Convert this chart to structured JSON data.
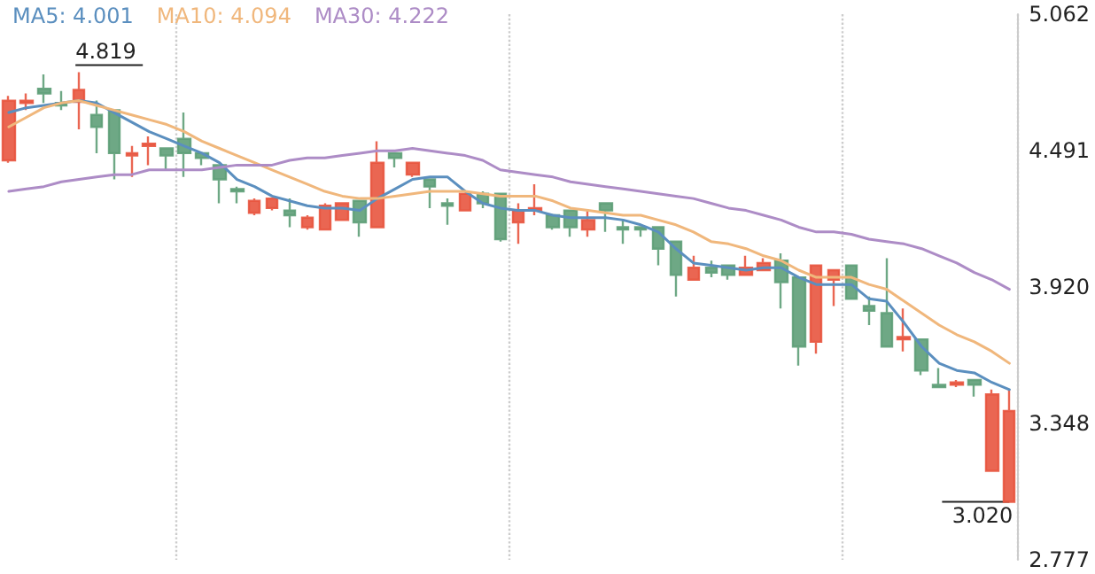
{
  "chart_data": {
    "type": "candlestick",
    "categories": [
      null,
      null,
      null,
      null,
      null,
      null,
      null,
      null,
      null,
      null,
      null,
      null,
      null,
      null,
      null,
      null,
      null,
      null,
      null,
      null,
      null,
      null,
      null,
      null,
      null,
      null,
      null,
      null,
      null,
      null,
      null,
      null,
      null,
      null,
      null,
      null,
      null,
      null,
      null,
      null,
      null,
      null,
      null,
      null,
      null,
      null,
      null,
      null,
      null,
      null,
      null,
      null,
      null,
      null,
      null,
      null,
      null,
      null
    ],
    "ohlc": [
      [
        4.45,
        4.72,
        4.44,
        4.7
      ],
      [
        4.69,
        4.73,
        4.66,
        4.7
      ],
      [
        4.75,
        4.81,
        4.69,
        4.73
      ],
      [
        4.69,
        4.74,
        4.66,
        4.68
      ],
      [
        4.695,
        4.819,
        4.58,
        4.745
      ],
      [
        4.64,
        4.7,
        4.48,
        4.59
      ],
      [
        4.66,
        4.66,
        4.37,
        4.48
      ],
      [
        4.47,
        4.51,
        4.38,
        4.48
      ],
      [
        4.51,
        4.55,
        4.43,
        4.52
      ],
      [
        4.5,
        4.5,
        4.41,
        4.47
      ],
      [
        4.54,
        4.65,
        4.38,
        4.48
      ],
      [
        4.48,
        4.48,
        4.43,
        4.46
      ],
      [
        4.43,
        4.43,
        4.27,
        4.37
      ],
      [
        4.33,
        4.34,
        4.27,
        4.32
      ],
      [
        4.23,
        4.29,
        4.22,
        4.28
      ],
      [
        4.25,
        4.29,
        4.24,
        4.29
      ],
      [
        4.24,
        4.29,
        4.17,
        4.22
      ],
      [
        4.17,
        4.22,
        4.16,
        4.21
      ],
      [
        4.16,
        4.27,
        4.16,
        4.26
      ],
      [
        4.2,
        4.27,
        4.2,
        4.27
      ],
      [
        4.28,
        4.28,
        4.13,
        4.19
      ],
      [
        4.17,
        4.53,
        4.17,
        4.44
      ],
      [
        4.48,
        4.48,
        4.42,
        4.46
      ],
      [
        4.39,
        4.44,
        4.38,
        4.44
      ],
      [
        4.37,
        4.37,
        4.25,
        4.34
      ],
      [
        4.27,
        4.29,
        4.18,
        4.26
      ],
      [
        4.24,
        4.31,
        4.24,
        4.31
      ],
      [
        4.31,
        4.32,
        4.25,
        4.27
      ],
      [
        4.31,
        4.31,
        4.11,
        4.12
      ],
      [
        4.19,
        4.27,
        4.1,
        4.24
      ],
      [
        4.24,
        4.35,
        4.22,
        4.25
      ],
      [
        4.22,
        4.22,
        4.16,
        4.17
      ],
      [
        4.24,
        4.24,
        4.13,
        4.17
      ],
      [
        4.16,
        4.24,
        4.13,
        4.2
      ],
      [
        4.27,
        4.27,
        4.15,
        4.24
      ],
      [
        4.17,
        4.2,
        4.1,
        4.16
      ],
      [
        4.17,
        4.17,
        4.13,
        4.16
      ],
      [
        4.17,
        4.17,
        4.01,
        4.08
      ],
      [
        4.11,
        4.11,
        3.88,
        3.97
      ],
      [
        3.95,
        4.05,
        3.95,
        4.0
      ],
      [
        4.0,
        4.03,
        3.96,
        3.98
      ],
      [
        4.01,
        4.01,
        3.95,
        3.97
      ],
      [
        3.97,
        4.05,
        3.97,
        4.0
      ],
      [
        3.99,
        4.04,
        3.99,
        4.02
      ],
      [
        4.03,
        4.06,
        3.83,
        3.94
      ],
      [
        3.96,
        3.96,
        3.59,
        3.67
      ],
      [
        3.69,
        4.01,
        3.64,
        4.01
      ],
      [
        3.95,
        3.99,
        3.84,
        3.99
      ],
      [
        4.01,
        4.01,
        3.87,
        3.87
      ],
      [
        3.84,
        3.88,
        3.76,
        3.82
      ],
      [
        3.81,
        4.04,
        3.67,
        3.67
      ],
      [
        3.7,
        3.83,
        3.65,
        3.71
      ],
      [
        3.7,
        3.7,
        3.55,
        3.57
      ],
      [
        3.51,
        3.58,
        3.5,
        3.5
      ],
      [
        3.51,
        3.53,
        3.5,
        3.52
      ],
      [
        3.53,
        3.53,
        3.46,
        3.51
      ],
      [
        3.15,
        3.49,
        3.15,
        3.47
      ],
      [
        3.02,
        3.49,
        3.02,
        3.4
      ]
    ],
    "colors": [
      "#e8553f",
      "#e8553f",
      "#5e9e78",
      "#5e9e78",
      "#e8553f",
      "#5e9e78",
      "#5e9e78",
      "#e8553f",
      "#e8553f",
      "#5e9e78",
      "#5e9e78",
      "#5e9e78",
      "#5e9e78",
      "#5e9e78",
      "#e8553f",
      "#e8553f",
      "#5e9e78",
      "#e8553f",
      "#e8553f",
      "#e8553f",
      "#5e9e78",
      "#e8553f",
      "#5e9e78",
      "#e8553f",
      "#5e9e78",
      "#5e9e78",
      "#e8553f",
      "#5e9e78",
      "#5e9e78",
      "#e8553f",
      "#e8553f",
      "#5e9e78",
      "#5e9e78",
      "#e8553f",
      "#5e9e78",
      "#5e9e78",
      "#5e9e78",
      "#5e9e78",
      "#5e9e78",
      "#e8553f",
      "#5e9e78",
      "#5e9e78",
      "#e8553f",
      "#e8553f",
      "#5e9e78",
      "#5e9e78",
      "#e8553f",
      "#e8553f",
      "#5e9e78",
      "#5e9e78",
      "#5e9e78",
      "#e8553f",
      "#5e9e78",
      "#5e9e78",
      "#e8553f",
      "#5e9e78",
      "#e8553f",
      "#e8553f"
    ],
    "series": [
      {
        "type": "line",
        "name": "MA5: 4.001",
        "color": "#5b8fbf",
        "values": [
          4.65,
          4.67,
          4.68,
          4.69,
          4.7,
          4.69,
          4.65,
          4.61,
          4.57,
          4.54,
          4.51,
          4.48,
          4.44,
          4.37,
          4.34,
          4.3,
          4.28,
          4.26,
          4.25,
          4.25,
          4.24,
          4.29,
          4.33,
          4.37,
          4.38,
          4.38,
          4.32,
          4.27,
          4.25,
          4.24,
          4.24,
          4.22,
          4.21,
          4.21,
          4.21,
          4.2,
          4.18,
          4.15,
          4.08,
          4.02,
          4.01,
          4.0,
          3.99,
          4.0,
          4.0,
          3.96,
          3.93,
          3.93,
          3.93,
          3.87,
          3.86,
          3.77,
          3.67,
          3.6,
          3.57,
          3.56,
          3.52,
          3.49
        ]
      },
      {
        "type": "line",
        "name": "MA10: 4.094",
        "color": "#f0b77c",
        "values": [
          4.59,
          4.63,
          4.67,
          4.69,
          4.7,
          4.68,
          4.66,
          4.64,
          4.62,
          4.6,
          4.57,
          4.53,
          4.5,
          4.47,
          4.44,
          4.41,
          4.38,
          4.35,
          4.32,
          4.3,
          4.29,
          4.29,
          4.3,
          4.31,
          4.32,
          4.32,
          4.32,
          4.31,
          4.3,
          4.3,
          4.3,
          4.28,
          4.25,
          4.24,
          4.23,
          4.22,
          4.22,
          4.2,
          4.18,
          4.15,
          4.11,
          4.1,
          4.08,
          4.05,
          4.03,
          3.99,
          3.96,
          3.96,
          3.96,
          3.93,
          3.91,
          3.86,
          3.81,
          3.76,
          3.72,
          3.69,
          3.65,
          3.6
        ]
      },
      {
        "type": "line",
        "name": "MA30: 4.222",
        "color": "#ad8cc6",
        "values": [
          4.32,
          4.33,
          4.34,
          4.36,
          4.37,
          4.38,
          4.39,
          4.39,
          4.41,
          4.41,
          4.41,
          4.41,
          4.42,
          4.43,
          4.43,
          4.43,
          4.45,
          4.46,
          4.46,
          4.47,
          4.48,
          4.49,
          4.49,
          4.5,
          4.49,
          4.48,
          4.47,
          4.45,
          4.41,
          4.4,
          4.39,
          4.38,
          4.36,
          4.35,
          4.34,
          4.33,
          4.32,
          4.31,
          4.3,
          4.29,
          4.27,
          4.25,
          4.24,
          4.22,
          4.2,
          4.17,
          4.15,
          4.15,
          4.14,
          4.12,
          4.11,
          4.1,
          4.08,
          4.05,
          4.02,
          3.98,
          3.95,
          3.91
        ]
      }
    ],
    "ylim": [
      2.777,
      5.062
    ],
    "yticks": [
      2.777,
      3.348,
      {
        "value": 3.92,
        "label": "3.920"
      },
      4.491,
      5.062
    ],
    "grid": "x",
    "legend": "top left",
    "marker": "none",
    "annotations": [
      "4.819",
      "3.020"
    ]
  }
}
